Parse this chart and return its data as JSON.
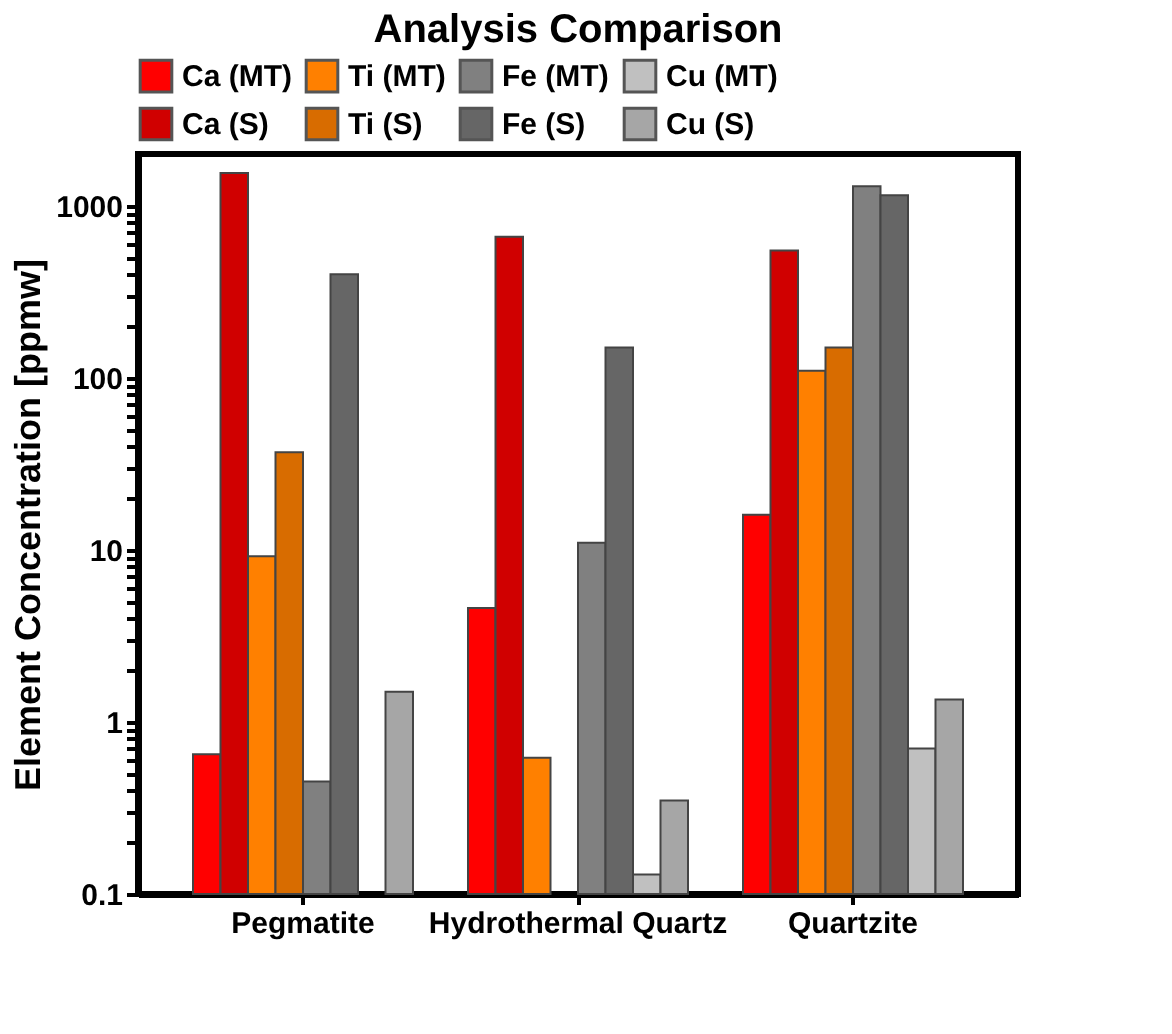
{
  "chart_data": {
    "type": "bar",
    "title": "Analysis Comparison",
    "ylabel": "Element Concentration [ppmw]",
    "categories": [
      "Pegmatite",
      "Hydrothermal Quartz",
      "Quartzite"
    ],
    "series": [
      {
        "name": "Ca (MT)",
        "color": "#ff0000",
        "values": [
          0.65,
          4.6,
          16
        ]
      },
      {
        "name": "Ca (S)",
        "color": "#d00000",
        "values": [
          1550,
          660,
          550
        ]
      },
      {
        "name": "Ti (MT)",
        "color": "#ff8000",
        "values": [
          9.2,
          0.62,
          110
        ]
      },
      {
        "name": "Ti (S)",
        "color": "#d86c00",
        "values": [
          37,
          null,
          150
        ]
      },
      {
        "name": "Fe (MT)",
        "color": "#808080",
        "values": [
          0.45,
          11,
          1300
        ]
      },
      {
        "name": "Fe (S)",
        "color": "#666666",
        "values": [
          400,
          150,
          1150
        ]
      },
      {
        "name": "Cu (MT)",
        "color": "#c0c0c0",
        "values": [
          null,
          0.13,
          0.7
        ]
      },
      {
        "name": "Cu (S)",
        "color": "#a6a6a6",
        "values": [
          1.5,
          0.35,
          1.35
        ]
      }
    ],
    "log": true,
    "ylim": [
      0.1,
      2000
    ],
    "yticks": [
      0.1,
      {
        "value": 0.2,
        "label": null
      },
      {
        "value": 0.3,
        "label": null
      },
      {
        "value": 0.4,
        "label": null
      },
      {
        "value": 0.5,
        "label": null
      },
      {
        "value": 0.6,
        "label": null
      },
      {
        "value": 0.7,
        "label": null
      },
      {
        "value": 0.8,
        "label": null
      },
      {
        "value": 0.9,
        "label": null
      },
      1,
      {
        "value": 2,
        "label": null
      },
      {
        "value": 3,
        "label": null
      },
      {
        "value": 4,
        "label": null
      },
      {
        "value": 5,
        "label": null
      },
      {
        "value": 6,
        "label": null
      },
      {
        "value": 7,
        "label": null
      },
      {
        "value": 8,
        "label": null
      },
      {
        "value": 9,
        "label": null
      },
      10,
      {
        "value": 20,
        "label": null
      },
      {
        "value": 30,
        "label": null
      },
      {
        "value": 40,
        "label": null
      },
      {
        "value": 50,
        "label": null
      },
      {
        "value": 60,
        "label": null
      },
      {
        "value": 70,
        "label": null
      },
      {
        "value": 80,
        "label": null
      },
      {
        "value": 90,
        "label": null
      },
      100,
      {
        "value": 200,
        "label": null
      },
      {
        "value": 300,
        "label": null
      },
      {
        "value": 400,
        "label": null
      },
      {
        "value": 500,
        "label": null
      },
      {
        "value": 600,
        "label": null
      },
      {
        "value": 700,
        "label": null
      },
      {
        "value": 800,
        "label": null
      },
      {
        "value": 900,
        "label": null
      },
      1000
    ],
    "grid": false,
    "legend": "top"
  }
}
